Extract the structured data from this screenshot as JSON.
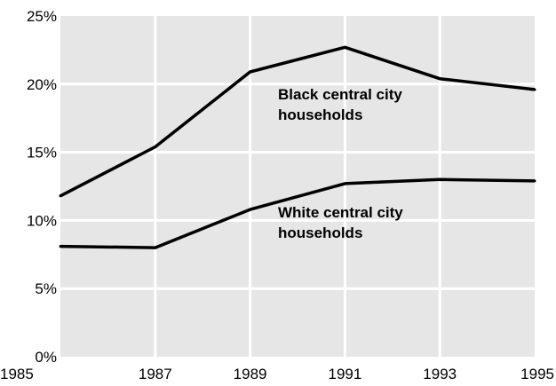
{
  "chart_data": {
    "type": "line",
    "title": "",
    "xlabel": "",
    "ylabel": "",
    "x": [
      1985,
      1987,
      1989,
      1991,
      1993,
      1995
    ],
    "xlim": [
      1985,
      1995
    ],
    "ylim": [
      0,
      25
    ],
    "x_ticks": [
      "1985",
      "1987",
      "1989",
      "1991",
      "1993",
      "1995"
    ],
    "y_ticks": [
      {
        "value": 0,
        "label": "0%"
      },
      {
        "value": 5,
        "label": "5%"
      },
      {
        "value": 10,
        "label": "10%"
      },
      {
        "value": 15,
        "label": "15%"
      },
      {
        "value": 20,
        "label": "20%"
      },
      {
        "value": 25,
        "label": "25%"
      }
    ],
    "grid": true,
    "background_color": "#e6e6e6",
    "grid_color": "#ffffff",
    "line_color": "#000000",
    "series": [
      {
        "label_lines": [
          "Black central city",
          "households"
        ],
        "values": [
          11.8,
          15.4,
          20.9,
          22.7,
          20.4,
          19.6
        ]
      },
      {
        "label_lines": [
          "White central city",
          "households"
        ],
        "values": [
          8.1,
          8.0,
          10.8,
          12.7,
          13.0,
          12.9
        ]
      }
    ]
  }
}
